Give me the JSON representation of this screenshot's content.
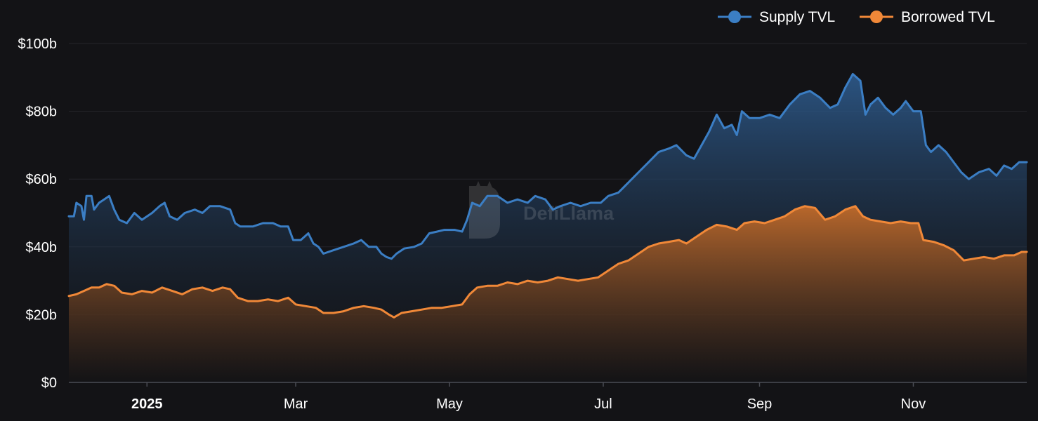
{
  "colors": {
    "background": "#131316",
    "grid": "#24252b",
    "axis": "#4b4d55",
    "supply": "#3b7ec4",
    "borrowed": "#f08838"
  },
  "watermark": {
    "text": "DefiLlama"
  },
  "chart_data": {
    "type": "area",
    "title": "",
    "xlabel": "",
    "ylabel": "",
    "legend_position": "top-right",
    "grid": true,
    "xlim": [
      "2024-12-01",
      "2025-12-16"
    ],
    "ylim": [
      0,
      100
    ],
    "y_ticks": [
      {
        "value": 0,
        "label": "$0"
      },
      {
        "value": 20,
        "label": "$20b"
      },
      {
        "value": 40,
        "label": "$40b"
      },
      {
        "value": 60,
        "label": "$60b"
      },
      {
        "value": 80,
        "label": "$80b"
      },
      {
        "value": 100,
        "label": "$100b"
      }
    ],
    "x_ticks": [
      {
        "date": "2025-01-01",
        "label": "2025",
        "bold": true
      },
      {
        "date": "2025-03-01",
        "label": "Mar",
        "bold": false
      },
      {
        "date": "2025-05-01",
        "label": "May",
        "bold": false
      },
      {
        "date": "2025-07-01",
        "label": "Jul",
        "bold": false
      },
      {
        "date": "2025-09-01",
        "label": "Sep",
        "bold": false
      },
      {
        "date": "2025-11-01",
        "label": "Nov",
        "bold": false
      }
    ],
    "series": [
      {
        "name": "Supply TVL",
        "color": "#3b7ec4",
        "points": [
          [
            "2024-12-01",
            49
          ],
          [
            "2024-12-03",
            49
          ],
          [
            "2024-12-04",
            53
          ],
          [
            "2024-12-06",
            52
          ],
          [
            "2024-12-07",
            48
          ],
          [
            "2024-12-08",
            55
          ],
          [
            "2024-12-10",
            55
          ],
          [
            "2024-12-11",
            51
          ],
          [
            "2024-12-13",
            53
          ],
          [
            "2024-12-15",
            54
          ],
          [
            "2024-12-17",
            55
          ],
          [
            "2024-12-19",
            51
          ],
          [
            "2024-12-21",
            48
          ],
          [
            "2024-12-24",
            47
          ],
          [
            "2024-12-27",
            50
          ],
          [
            "2024-12-30",
            48
          ],
          [
            "2025-01-03",
            50
          ],
          [
            "2025-01-06",
            52
          ],
          [
            "2025-01-08",
            53
          ],
          [
            "2025-01-10",
            49
          ],
          [
            "2025-01-13",
            48
          ],
          [
            "2025-01-16",
            50
          ],
          [
            "2025-01-20",
            51
          ],
          [
            "2025-01-23",
            50
          ],
          [
            "2025-01-26",
            52
          ],
          [
            "2025-01-30",
            52
          ],
          [
            "2025-02-03",
            51
          ],
          [
            "2025-02-05",
            47
          ],
          [
            "2025-02-07",
            46
          ],
          [
            "2025-02-12",
            46
          ],
          [
            "2025-02-16",
            47
          ],
          [
            "2025-02-20",
            47
          ],
          [
            "2025-02-23",
            46
          ],
          [
            "2025-02-26",
            46
          ],
          [
            "2025-02-28",
            42
          ],
          [
            "2025-03-03",
            42
          ],
          [
            "2025-03-06",
            44
          ],
          [
            "2025-03-08",
            41
          ],
          [
            "2025-03-10",
            40
          ],
          [
            "2025-03-12",
            38
          ],
          [
            "2025-03-16",
            39
          ],
          [
            "2025-03-20",
            40
          ],
          [
            "2025-03-24",
            41
          ],
          [
            "2025-03-27",
            42
          ],
          [
            "2025-03-30",
            40
          ],
          [
            "2025-04-02",
            40
          ],
          [
            "2025-04-04",
            38
          ],
          [
            "2025-04-06",
            37
          ],
          [
            "2025-04-08",
            36.5
          ],
          [
            "2025-04-10",
            38
          ],
          [
            "2025-04-13",
            39.5
          ],
          [
            "2025-04-17",
            40
          ],
          [
            "2025-04-20",
            41
          ],
          [
            "2025-04-23",
            44
          ],
          [
            "2025-04-26",
            44.5
          ],
          [
            "2025-04-29",
            45
          ],
          [
            "2025-05-03",
            45
          ],
          [
            "2025-05-06",
            44.5
          ],
          [
            "2025-05-08",
            48
          ],
          [
            "2025-05-10",
            53
          ],
          [
            "2025-05-13",
            52
          ],
          [
            "2025-05-16",
            55
          ],
          [
            "2025-05-20",
            55
          ],
          [
            "2025-05-24",
            53
          ],
          [
            "2025-05-28",
            54
          ],
          [
            "2025-06-01",
            53
          ],
          [
            "2025-06-04",
            55
          ],
          [
            "2025-06-08",
            54
          ],
          [
            "2025-06-11",
            51
          ],
          [
            "2025-06-14",
            52
          ],
          [
            "2025-06-18",
            53
          ],
          [
            "2025-06-22",
            52
          ],
          [
            "2025-06-26",
            53
          ],
          [
            "2025-06-30",
            53
          ],
          [
            "2025-07-03",
            55
          ],
          [
            "2025-07-07",
            56
          ],
          [
            "2025-07-11",
            59
          ],
          [
            "2025-07-15",
            62
          ],
          [
            "2025-07-19",
            65
          ],
          [
            "2025-07-23",
            68
          ],
          [
            "2025-07-27",
            69
          ],
          [
            "2025-07-30",
            70
          ],
          [
            "2025-08-03",
            67
          ],
          [
            "2025-08-06",
            66
          ],
          [
            "2025-08-09",
            70
          ],
          [
            "2025-08-12",
            74
          ],
          [
            "2025-08-15",
            79
          ],
          [
            "2025-08-18",
            75
          ],
          [
            "2025-08-21",
            76
          ],
          [
            "2025-08-23",
            73
          ],
          [
            "2025-08-25",
            80
          ],
          [
            "2025-08-28",
            78
          ],
          [
            "2025-09-01",
            78
          ],
          [
            "2025-09-05",
            79
          ],
          [
            "2025-09-09",
            78
          ],
          [
            "2025-09-13",
            82
          ],
          [
            "2025-09-17",
            85
          ],
          [
            "2025-09-21",
            86
          ],
          [
            "2025-09-25",
            84
          ],
          [
            "2025-09-29",
            81
          ],
          [
            "2025-10-02",
            82
          ],
          [
            "2025-10-05",
            87
          ],
          [
            "2025-10-08",
            91
          ],
          [
            "2025-10-11",
            89
          ],
          [
            "2025-10-13",
            79
          ],
          [
            "2025-10-15",
            82
          ],
          [
            "2025-10-18",
            84
          ],
          [
            "2025-10-21",
            81
          ],
          [
            "2025-10-24",
            79
          ],
          [
            "2025-10-27",
            81
          ],
          [
            "2025-10-29",
            83
          ],
          [
            "2025-11-01",
            80
          ],
          [
            "2025-11-04",
            80
          ],
          [
            "2025-11-06",
            70
          ],
          [
            "2025-11-08",
            68
          ],
          [
            "2025-11-11",
            70
          ],
          [
            "2025-11-14",
            68
          ],
          [
            "2025-11-17",
            65
          ],
          [
            "2025-11-20",
            62
          ],
          [
            "2025-11-23",
            60
          ],
          [
            "2025-11-27",
            62
          ],
          [
            "2025-12-01",
            63
          ],
          [
            "2025-12-04",
            61
          ],
          [
            "2025-12-07",
            64
          ],
          [
            "2025-12-10",
            63
          ],
          [
            "2025-12-13",
            65
          ],
          [
            "2025-12-16",
            65
          ]
        ]
      },
      {
        "name": "Borrowed TVL",
        "color": "#f08838",
        "points": [
          [
            "2024-12-01",
            25.5
          ],
          [
            "2024-12-04",
            26
          ],
          [
            "2024-12-07",
            27
          ],
          [
            "2024-12-10",
            28
          ],
          [
            "2024-12-13",
            28
          ],
          [
            "2024-12-16",
            29
          ],
          [
            "2024-12-19",
            28.5
          ],
          [
            "2024-12-22",
            26.5
          ],
          [
            "2024-12-26",
            26
          ],
          [
            "2024-12-30",
            27
          ],
          [
            "2025-01-03",
            26.5
          ],
          [
            "2025-01-07",
            28
          ],
          [
            "2025-01-11",
            27
          ],
          [
            "2025-01-15",
            26
          ],
          [
            "2025-01-19",
            27.5
          ],
          [
            "2025-01-23",
            28
          ],
          [
            "2025-01-27",
            27
          ],
          [
            "2025-01-31",
            28
          ],
          [
            "2025-02-03",
            27.5
          ],
          [
            "2025-02-06",
            25
          ],
          [
            "2025-02-10",
            24
          ],
          [
            "2025-02-14",
            24
          ],
          [
            "2025-02-18",
            24.5
          ],
          [
            "2025-02-22",
            24
          ],
          [
            "2025-02-26",
            25
          ],
          [
            "2025-03-01",
            23
          ],
          [
            "2025-03-05",
            22.5
          ],
          [
            "2025-03-09",
            22
          ],
          [
            "2025-03-12",
            20.5
          ],
          [
            "2025-03-16",
            20.5
          ],
          [
            "2025-03-20",
            21
          ],
          [
            "2025-03-24",
            22
          ],
          [
            "2025-03-28",
            22.5
          ],
          [
            "2025-04-01",
            22
          ],
          [
            "2025-04-04",
            21.5
          ],
          [
            "2025-04-07",
            20
          ],
          [
            "2025-04-09",
            19.2
          ],
          [
            "2025-04-12",
            20.5
          ],
          [
            "2025-04-16",
            21
          ],
          [
            "2025-04-20",
            21.5
          ],
          [
            "2025-04-24",
            22
          ],
          [
            "2025-04-28",
            22
          ],
          [
            "2025-05-02",
            22.5
          ],
          [
            "2025-05-06",
            23
          ],
          [
            "2025-05-09",
            26
          ],
          [
            "2025-05-12",
            28
          ],
          [
            "2025-05-16",
            28.5
          ],
          [
            "2025-05-20",
            28.5
          ],
          [
            "2025-05-24",
            29.5
          ],
          [
            "2025-05-28",
            29
          ],
          [
            "2025-06-01",
            30
          ],
          [
            "2025-06-05",
            29.5
          ],
          [
            "2025-06-09",
            30
          ],
          [
            "2025-06-13",
            31
          ],
          [
            "2025-06-17",
            30.5
          ],
          [
            "2025-06-21",
            30
          ],
          [
            "2025-06-25",
            30.5
          ],
          [
            "2025-06-29",
            31
          ],
          [
            "2025-07-03",
            33
          ],
          [
            "2025-07-07",
            35
          ],
          [
            "2025-07-11",
            36
          ],
          [
            "2025-07-15",
            38
          ],
          [
            "2025-07-19",
            40
          ],
          [
            "2025-07-23",
            41
          ],
          [
            "2025-07-27",
            41.5
          ],
          [
            "2025-07-31",
            42
          ],
          [
            "2025-08-03",
            41
          ],
          [
            "2025-08-07",
            43
          ],
          [
            "2025-08-11",
            45
          ],
          [
            "2025-08-15",
            46.5
          ],
          [
            "2025-08-19",
            46
          ],
          [
            "2025-08-23",
            45
          ],
          [
            "2025-08-26",
            47
          ],
          [
            "2025-08-30",
            47.5
          ],
          [
            "2025-09-03",
            47
          ],
          [
            "2025-09-07",
            48
          ],
          [
            "2025-09-11",
            49
          ],
          [
            "2025-09-15",
            51
          ],
          [
            "2025-09-19",
            52
          ],
          [
            "2025-09-23",
            51.5
          ],
          [
            "2025-09-27",
            48
          ],
          [
            "2025-10-01",
            49
          ],
          [
            "2025-10-05",
            51
          ],
          [
            "2025-10-09",
            52
          ],
          [
            "2025-10-12",
            49
          ],
          [
            "2025-10-15",
            48
          ],
          [
            "2025-10-19",
            47.5
          ],
          [
            "2025-10-23",
            47
          ],
          [
            "2025-10-27",
            47.5
          ],
          [
            "2025-10-31",
            47
          ],
          [
            "2025-11-03",
            47
          ],
          [
            "2025-11-05",
            42
          ],
          [
            "2025-11-09",
            41.5
          ],
          [
            "2025-11-13",
            40.5
          ],
          [
            "2025-11-17",
            39
          ],
          [
            "2025-11-21",
            36
          ],
          [
            "2025-11-25",
            36.5
          ],
          [
            "2025-11-29",
            37
          ],
          [
            "2025-12-03",
            36.5
          ],
          [
            "2025-12-07",
            37.5
          ],
          [
            "2025-12-11",
            37.5
          ],
          [
            "2025-12-14",
            38.5
          ],
          [
            "2025-12-16",
            38.5
          ]
        ]
      }
    ]
  }
}
